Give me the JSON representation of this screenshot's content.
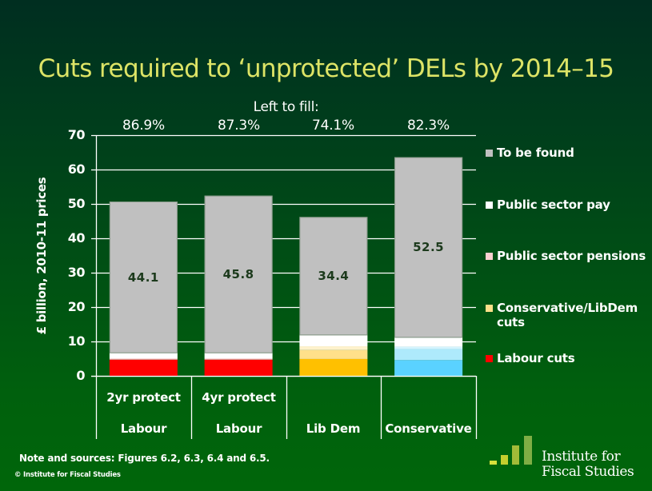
{
  "title": "Cuts required to ‘unprotected’ DELs by 2014–15",
  "left_to_fill_label": "Left to fill:",
  "note": "Note and sources: Figures 6.2, 6.3, 6.4 and 6.5.",
  "copyright": "© Institute for Fiscal Studies",
  "logo": {
    "line1": "Institute for",
    "line2": "Fiscal Studies",
    "bar_colors": [
      "#d6e03c",
      "#c4cf2e",
      "#a2bb38",
      "#7fae45"
    ]
  },
  "chart_data": {
    "type": "bar",
    "stacked": true,
    "title": "Cuts required to ‘unprotected’ DELs by 2014–15",
    "xlabel": "",
    "ylabel": "£ billion, 2010-11 prices",
    "ylim": [
      0,
      70
    ],
    "yticks": [
      0,
      10,
      20,
      30,
      40,
      50,
      60,
      70
    ],
    "grid": true,
    "legend_position": "right",
    "categories": [
      {
        "top": "2yr protect",
        "bottom": "Labour"
      },
      {
        "top": "4yr protect",
        "bottom": "Labour"
      },
      {
        "top": "",
        "bottom": "Lib Dem"
      },
      {
        "top": "",
        "bottom": "Conservative"
      }
    ],
    "left_to_fill": [
      "86.9%",
      "87.3%",
      "74.1%",
      "82.3%"
    ],
    "series": [
      {
        "name": "Labour cuts",
        "legend_color": "#ff0000",
        "values": [
          4.7,
          4.7,
          4.9,
          4.6
        ],
        "bar_colors": [
          "#ff0000",
          "#ff0000",
          "#ffc000",
          "#5ad2ff"
        ]
      },
      {
        "name": "Conservative/LibDem cuts",
        "legend_color": "#ffe08a",
        "values": [
          0,
          0,
          2.6,
          3.2
        ],
        "bar_colors": [
          "#ffe08a",
          "#ffe08a",
          "#ffe08a",
          "#aeeafc"
        ]
      },
      {
        "name": "Public sector pensions",
        "legend_color": "#fcd0d0",
        "values": [
          0.3,
          0.3,
          1.1,
          0.7
        ],
        "bar_colors": [
          "#f4b4b4",
          "#f4b4b4",
          "#fff2cc",
          "#d4f4ff"
        ]
      },
      {
        "name": "Public sector pay",
        "legend_color": "#ffffff",
        "values": [
          1.6,
          1.6,
          3.2,
          2.6
        ],
        "bar_colors": [
          "#ffffff",
          "#ffffff",
          "#ffffff",
          "#ffffff"
        ]
      },
      {
        "name": "To be found",
        "legend_color": "#c0c0c0",
        "values": [
          44.1,
          45.8,
          34.4,
          52.5
        ],
        "bar_colors": [
          "#c0c0c0",
          "#c0c0c0",
          "#c0c0c0",
          "#c0c0c0"
        ]
      }
    ],
    "data_labels": [
      "44.1",
      "45.8",
      "34.4",
      "52.5"
    ],
    "legend": [
      {
        "label": "To be found",
        "color": "#c0c0c0"
      },
      {
        "label": "Public sector pay",
        "color": "#ffffff"
      },
      {
        "label": "Public sector pensions",
        "color": "#fcd0d0"
      },
      {
        "label": "Conservative/LibDem cuts",
        "color": "#ffe08a"
      },
      {
        "label": "Labour cuts",
        "color": "#ff0000"
      }
    ]
  }
}
